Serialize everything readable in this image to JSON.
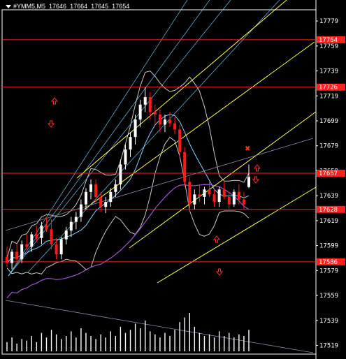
{
  "header": {
    "symbol": "#YMM5,M5",
    "ohlc": [
      "17646",
      "17664",
      "17645",
      "17654"
    ]
  },
  "price_axis": {
    "ticks": [
      "17779",
      "17759",
      "17739",
      "17719",
      "17699",
      "17679",
      "17659",
      "17639",
      "17619",
      "17599",
      "17579",
      "17559",
      "17539",
      "17519"
    ]
  },
  "price_labels": [
    {
      "text": "17764",
      "price": 17764
    },
    {
      "text": "17726",
      "price": 17726
    },
    {
      "text": "17657",
      "price": 17657
    },
    {
      "text": "17628",
      "price": 17628
    },
    {
      "text": "17586",
      "price": 17586
    }
  ],
  "colors": {
    "background": "#000000",
    "bull_candle": "#ffffff",
    "bear_candle": "#ff1a1a",
    "level_line": "#ff2020",
    "channel": "#ffff44",
    "fan": "#7fd6ff",
    "bands": "#c8c8c8",
    "moving_average": "#9b59d0",
    "volume": "#ffffff",
    "arrow": "#ff3030"
  },
  "chart_data": {
    "type": "candlestick",
    "symbol": "#YMM5",
    "timeframe": "M5",
    "ylim": [
      17512,
      17788
    ],
    "candles": [
      [
        17590,
        17598,
        17582,
        17585
      ],
      [
        17585,
        17596,
        17580,
        17594
      ],
      [
        17594,
        17600,
        17586,
        17588
      ],
      [
        17588,
        17603,
        17585,
        17600
      ],
      [
        17600,
        17608,
        17596,
        17598
      ],
      [
        17598,
        17610,
        17594,
        17608
      ],
      [
        17608,
        17615,
        17602,
        17605
      ],
      [
        17605,
        17618,
        17600,
        17615
      ],
      [
        17615,
        17622,
        17610,
        17612
      ],
      [
        17612,
        17620,
        17596,
        17600
      ],
      [
        17600,
        17605,
        17588,
        17592
      ],
      [
        17592,
        17606,
        17588,
        17604
      ],
      [
        17604,
        17614,
        17600,
        17611
      ],
      [
        17611,
        17622,
        17606,
        17618
      ],
      [
        17618,
        17626,
        17612,
        17622
      ],
      [
        17622,
        17636,
        17618,
        17632
      ],
      [
        17632,
        17645,
        17628,
        17642
      ],
      [
        17642,
        17652,
        17636,
        17648
      ],
      [
        17648,
        17652,
        17634,
        17638
      ],
      [
        17638,
        17642,
        17626,
        17630
      ],
      [
        17630,
        17638,
        17625,
        17634
      ],
      [
        17634,
        17645,
        17630,
        17642
      ],
      [
        17642,
        17652,
        17638,
        17648
      ],
      [
        17648,
        17668,
        17644,
        17664
      ],
      [
        17664,
        17680,
        17660,
        17676
      ],
      [
        17676,
        17690,
        17670,
        17686
      ],
      [
        17686,
        17704,
        17680,
        17700
      ],
      [
        17700,
        17716,
        17694,
        17712
      ],
      [
        17712,
        17726,
        17706,
        17718
      ],
      [
        17718,
        17722,
        17700,
        17706
      ],
      [
        17706,
        17712,
        17696,
        17704
      ],
      [
        17704,
        17708,
        17690,
        17696
      ],
      [
        17696,
        17704,
        17690,
        17700
      ],
      [
        17700,
        17706,
        17694,
        17697
      ],
      [
        17697,
        17702,
        17688,
        17692
      ],
      [
        17692,
        17696,
        17670,
        17674
      ],
      [
        17674,
        17678,
        17646,
        17650
      ],
      [
        17650,
        17654,
        17626,
        17632
      ],
      [
        17632,
        17644,
        17628,
        17640
      ],
      [
        17640,
        17648,
        17634,
        17638
      ],
      [
        17638,
        17646,
        17632,
        17644
      ],
      [
        17644,
        17650,
        17638,
        17640
      ],
      [
        17640,
        17644,
        17630,
        17634
      ],
      [
        17634,
        17646,
        17630,
        17644
      ],
      [
        17644,
        17650,
        17636,
        17638
      ],
      [
        17638,
        17642,
        17628,
        17632
      ],
      [
        17632,
        17644,
        17630,
        17642
      ],
      [
        17642,
        17648,
        17632,
        17636
      ],
      [
        17636,
        17642,
        17628,
        17632
      ],
      [
        17646,
        17664,
        17645,
        17654
      ]
    ],
    "volumes": [
      6,
      9,
      5,
      8,
      7,
      10,
      6,
      12,
      9,
      14,
      11,
      8,
      10,
      13,
      9,
      15,
      12,
      10,
      8,
      11,
      9,
      13,
      10,
      16,
      12,
      14,
      18,
      15,
      20,
      13,
      11,
      9,
      12,
      10,
      14,
      19,
      22,
      25,
      16,
      12,
      10,
      11,
      9,
      13,
      10,
      12,
      9,
      11,
      10,
      14
    ]
  }
}
